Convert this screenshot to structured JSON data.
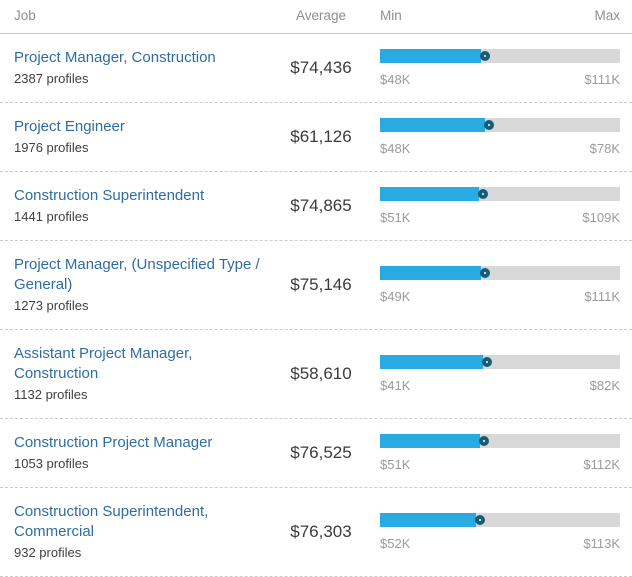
{
  "header": {
    "job": "Job",
    "average": "Average",
    "min": "Min",
    "max": "Max"
  },
  "colors": {
    "bar_fill": "#29abe2",
    "bar_track": "#d8d8d8",
    "marker_ring": "#175d78",
    "link": "#2e6da4"
  },
  "chart_data": {
    "type": "table",
    "columns": [
      "Job",
      "Average",
      "Min",
      "Max"
    ],
    "rows": [
      {
        "title": "Project Manager, Construction",
        "profiles": "2387 profiles",
        "average_label": "$74,436",
        "min_label": "$48K",
        "max_label": "$111K",
        "avg": 74436,
        "min": 48000,
        "max": 111000
      },
      {
        "title": "Project Engineer",
        "profiles": "1976 profiles",
        "average_label": "$61,126",
        "min_label": "$48K",
        "max_label": "$78K",
        "avg": 61126,
        "min": 48000,
        "max": 78000
      },
      {
        "title": "Construction Superintendent",
        "profiles": "1441 profiles",
        "average_label": "$74,865",
        "min_label": "$51K",
        "max_label": "$109K",
        "avg": 74865,
        "min": 51000,
        "max": 109000
      },
      {
        "title": "Project Manager, (Unspecified Type / General)",
        "profiles": "1273 profiles",
        "average_label": "$75,146",
        "min_label": "$49K",
        "max_label": "$111K",
        "avg": 75146,
        "min": 49000,
        "max": 111000
      },
      {
        "title": "Assistant Project Manager, Construction",
        "profiles": "1132 profiles",
        "average_label": "$58,610",
        "min_label": "$41K",
        "max_label": "$82K",
        "avg": 58610,
        "min": 41000,
        "max": 82000
      },
      {
        "title": "Construction Project Manager",
        "profiles": "1053 profiles",
        "average_label": "$76,525",
        "min_label": "$51K",
        "max_label": "$112K",
        "avg": 76525,
        "min": 51000,
        "max": 112000
      },
      {
        "title": "Construction Superintendent, Commercial",
        "profiles": "932 profiles",
        "average_label": "$76,303",
        "min_label": "$52K",
        "max_label": "$113K",
        "avg": 76303,
        "min": 52000,
        "max": 113000
      }
    ]
  }
}
